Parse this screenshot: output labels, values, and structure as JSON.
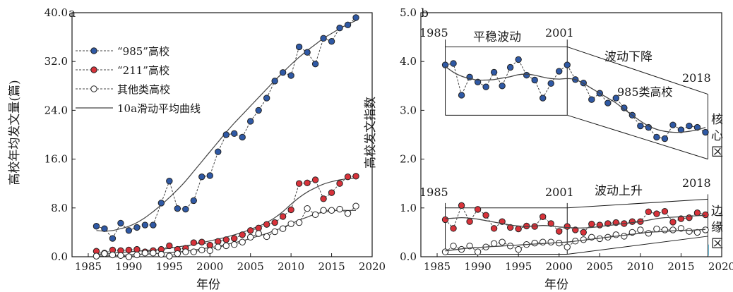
{
  "colors": {
    "blue": "#2f59a5",
    "red": "#d8323a",
    "white": "#ffffff",
    "line": "#444444",
    "axis": "#1a1a1a"
  },
  "chart_data": [
    {
      "type": "line",
      "panel": "a",
      "xlabel": "年份",
      "ylabel": "高校年均发文量(篇)",
      "xlim": [
        1983,
        2020
      ],
      "ylim": [
        0,
        40
      ],
      "x_ticks": [
        1985,
        1990,
        1995,
        2000,
        2005,
        2010,
        2015,
        2020
      ],
      "y_ticks": [
        "0.0",
        "8.0",
        "16.0",
        "24.0",
        "32.0",
        "40.0"
      ],
      "grid": false,
      "legend_position": "top-left",
      "x": [
        1986,
        1987,
        1988,
        1989,
        1990,
        1991,
        1992,
        1993,
        1994,
        1995,
        1996,
        1997,
        1998,
        1999,
        2000,
        2001,
        2002,
        2003,
        2004,
        2005,
        2006,
        2007,
        2008,
        2009,
        2010,
        2011,
        2012,
        2013,
        2014,
        2015,
        2016,
        2017,
        2018
      ],
      "series": [
        {
          "name": "“985”高校",
          "marker": "blue",
          "values": [
            5.0,
            4.6,
            3.0,
            5.5,
            4.3,
            4.8,
            5.2,
            5.2,
            8.8,
            12.4,
            7.9,
            7.8,
            9.2,
            13.1,
            13.3,
            17.2,
            20.0,
            20.2,
            19.6,
            22.2,
            24.0,
            26.0,
            28.8,
            30.2,
            29.7,
            34.4,
            33.5,
            31.6,
            35.8,
            35.3,
            37.5,
            38.0,
            39.2
          ]
        },
        {
          "name": "“211”高校",
          "marker": "red",
          "values": [
            0.9,
            0.6,
            1.1,
            1.0,
            1.1,
            1.2,
            0.8,
            1.0,
            1.2,
            1.8,
            1.2,
            1.4,
            2.3,
            2.4,
            1.9,
            2.5,
            2.8,
            3.0,
            3.6,
            4.3,
            4.7,
            5.3,
            5.6,
            6.6,
            7.7,
            12.0,
            12.1,
            12.6,
            9.5,
            10.5,
            12.0,
            13.1,
            13.2
          ]
        },
        {
          "name": "其他类高校",
          "marker": "white",
          "values": [
            0.1,
            0.5,
            0.3,
            0.2,
            0.0,
            0.3,
            0.6,
            0.6,
            0.4,
            0.1,
            0.5,
            0.8,
            0.8,
            1.1,
            1.0,
            1.6,
            1.8,
            2.0,
            2.4,
            3.2,
            3.8,
            3.3,
            4.1,
            4.6,
            5.4,
            5.6,
            7.9,
            6.9,
            7.6,
            7.6,
            7.8,
            7.1,
            8.3
          ]
        },
        {
          "name": "10a滑动平均曲线",
          "marker": "none",
          "smooth": {
            "985": [
              4.3,
              4.2,
              4.3,
              4.6,
              5.0,
              5.6,
              6.4,
              7.4,
              8.5,
              9.7,
              11.0,
              12.4,
              14.0,
              15.6,
              17.2,
              18.8,
              20.4,
              21.9,
              23.3,
              24.7,
              26.1,
              27.5,
              28.9,
              30.2,
              31.5,
              32.7,
              33.8,
              34.8,
              35.8,
              36.6,
              37.4,
              38.1,
              38.7
            ],
            "211": [
              0.4,
              0.5,
              0.6,
              0.7,
              0.8,
              0.9,
              1.0,
              1.1,
              1.2,
              1.4,
              1.6,
              1.8,
              2.0,
              2.3,
              2.6,
              2.9,
              3.2,
              3.6,
              4.0,
              4.5,
              5.0,
              5.6,
              6.4,
              7.4,
              8.6,
              9.7,
              10.6,
              11.3,
              11.9,
              12.3,
              12.6,
              12.8,
              12.9
            ],
            "other": [
              0.1,
              0.1,
              0.2,
              0.2,
              0.3,
              0.4,
              0.4,
              0.5,
              0.6,
              0.7,
              0.8,
              0.9,
              1.1,
              1.3,
              1.5,
              1.7,
              2.0,
              2.3,
              2.6,
              3.0,
              3.4,
              3.8,
              4.3,
              4.8,
              5.4,
              6.0,
              6.5,
              7.0,
              7.3,
              7.5,
              7.6,
              7.6,
              7.6
            ]
          }
        }
      ]
    },
    {
      "type": "line",
      "panel": "b",
      "xlabel": "年份",
      "ylabel": "高校发文指数",
      "xlim": [
        1983,
        2020
      ],
      "ylim": [
        0,
        5
      ],
      "x_ticks": [
        1985,
        1990,
        1995,
        2000,
        2005,
        2010,
        2015,
        2020
      ],
      "y_ticks": [
        "0.0",
        "1.0",
        "2.0",
        "3.0",
        "4.0",
        "5.0"
      ],
      "grid": false,
      "x": [
        1986,
        1987,
        1988,
        1989,
        1990,
        1991,
        1992,
        1993,
        1994,
        1995,
        1996,
        1997,
        1998,
        1999,
        2000,
        2001,
        2002,
        2003,
        2004,
        2005,
        2006,
        2007,
        2008,
        2009,
        2010,
        2011,
        2012,
        2013,
        2014,
        2015,
        2016,
        2017,
        2018
      ],
      "series": [
        {
          "group": "core",
          "marker": "blue",
          "values": [
            3.93,
            3.96,
            3.31,
            3.68,
            3.58,
            3.48,
            3.78,
            3.5,
            3.88,
            4.04,
            3.72,
            3.62,
            3.25,
            3.55,
            3.8,
            3.93,
            3.63,
            3.56,
            3.22,
            3.35,
            3.15,
            3.25,
            3.05,
            2.9,
            2.68,
            2.65,
            2.45,
            2.42,
            2.7,
            2.6,
            2.68,
            2.65,
            2.55
          ]
        },
        {
          "group": "core",
          "marker": "none",
          "smooth": [
            3.9,
            3.78,
            3.7,
            3.65,
            3.62,
            3.62,
            3.63,
            3.66,
            3.69,
            3.73,
            3.74,
            3.72,
            3.68,
            3.65,
            3.64,
            3.65,
            3.63,
            3.55,
            3.45,
            3.35,
            3.25,
            3.15,
            3.02,
            2.9,
            2.78,
            2.68,
            2.61,
            2.57,
            2.55,
            2.55,
            2.57,
            2.6,
            2.65
          ]
        },
        {
          "group": "edge",
          "marker": "red",
          "values": [
            0.76,
            0.58,
            1.05,
            0.72,
            0.97,
            0.85,
            0.58,
            0.72,
            0.6,
            0.57,
            0.63,
            0.62,
            0.82,
            0.68,
            0.52,
            0.62,
            0.55,
            0.5,
            0.67,
            0.65,
            0.68,
            0.7,
            0.68,
            0.72,
            0.72,
            0.92,
            0.88,
            0.93,
            0.71,
            0.78,
            0.8,
            0.9,
            0.86
          ]
        },
        {
          "group": "edge",
          "marker": "none",
          "smooth": [
            0.78,
            0.79,
            0.8,
            0.79,
            0.77,
            0.74,
            0.71,
            0.68,
            0.65,
            0.63,
            0.62,
            0.63,
            0.64,
            0.63,
            0.61,
            0.6,
            0.59,
            0.59,
            0.6,
            0.62,
            0.64,
            0.66,
            0.68,
            0.7,
            0.72,
            0.75,
            0.78,
            0.8,
            0.81,
            0.82,
            0.83,
            0.84,
            0.85
          ]
        },
        {
          "group": "edge",
          "marker": "white",
          "values": [
            0.1,
            0.22,
            0.15,
            0.22,
            0.1,
            0.2,
            0.27,
            0.3,
            0.22,
            0.15,
            0.25,
            0.28,
            0.3,
            0.3,
            0.28,
            0.2,
            0.32,
            0.35,
            0.4,
            0.37,
            0.4,
            0.45,
            0.42,
            0.5,
            0.55,
            0.48,
            0.57,
            0.55,
            0.55,
            0.58,
            0.52,
            0.5,
            0.55
          ]
        },
        {
          "group": "edge",
          "marker": "none",
          "smooth": [
            0.12,
            0.14,
            0.16,
            0.18,
            0.19,
            0.2,
            0.21,
            0.22,
            0.23,
            0.24,
            0.25,
            0.26,
            0.27,
            0.28,
            0.29,
            0.3,
            0.32,
            0.34,
            0.36,
            0.38,
            0.4,
            0.42,
            0.44,
            0.46,
            0.48,
            0.5,
            0.51,
            0.52,
            0.53,
            0.54,
            0.54,
            0.55,
            0.56
          ]
        }
      ],
      "annotations": {
        "core_years": [
          "1985",
          "2001",
          "2018"
        ],
        "core_phase1": "平稳波动",
        "core_phase2": "波动下降",
        "core_series_label": "985类高校",
        "core_zone": "核心区",
        "edge_years": [
          "1985",
          "2001",
          "2018"
        ],
        "edge_phase2": "波动上升",
        "edge_zone": "边缘区"
      }
    }
  ]
}
